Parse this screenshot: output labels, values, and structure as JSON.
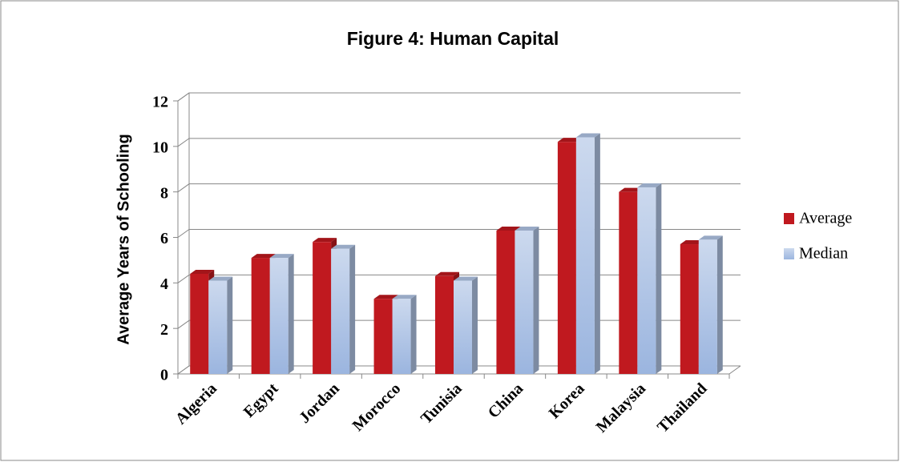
{
  "chart_data": {
    "type": "bar",
    "title": "Figure 4: Human Capital",
    "y_label": "Average Years of Schooling",
    "categories": [
      "Algeria",
      "Egypt",
      "Jordan",
      "Morocco",
      "Tunisia",
      "China",
      "Korea",
      "Malaysia",
      "Thailand"
    ],
    "series": [
      {
        "name": "Average",
        "color": "#c0191f",
        "values": [
          4.4,
          5.1,
          5.8,
          3.3,
          4.3,
          6.3,
          10.2,
          8.0,
          5.7
        ]
      },
      {
        "name": "Median",
        "color": "#b3c7e8",
        "values": [
          4.1,
          5.1,
          5.5,
          3.3,
          4.1,
          6.3,
          10.4,
          8.2,
          5.9
        ]
      }
    ],
    "ylim": [
      0,
      12
    ],
    "yticks": [
      0,
      2,
      4,
      6,
      8,
      10,
      12
    ],
    "grid": true,
    "legend": "right"
  }
}
